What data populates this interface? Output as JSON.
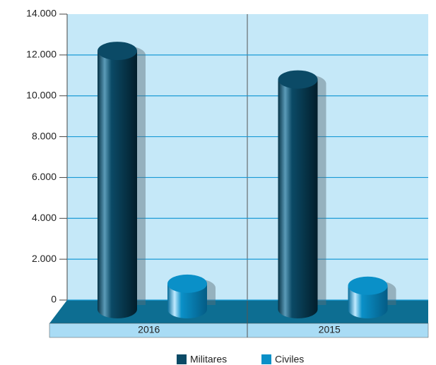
{
  "chart_data": {
    "type": "bar",
    "categories": [
      "2016",
      "2015"
    ],
    "series": [
      {
        "name": "Militares",
        "color": "#0b4a66",
        "values": [
          12200,
          10800
        ]
      },
      {
        "name": "Civiles",
        "color": "#0a90c8",
        "values": [
          800,
          700
        ]
      }
    ],
    "ylim": [
      0,
      14000
    ],
    "yticks": [
      0,
      {
        "value": 2000,
        "label": "2.000"
      },
      {
        "value": 4000,
        "label": "4.000"
      },
      {
        "value": 6000,
        "label": "6.000"
      },
      {
        "value": 8000,
        "label": "8.000"
      },
      {
        "value": 10000,
        "label": "10.000"
      },
      {
        "value": 12000,
        "label": "12.000"
      },
      {
        "value": 14000,
        "label": "14.000"
      }
    ],
    "grid": true,
    "legend": "bottom"
  }
}
